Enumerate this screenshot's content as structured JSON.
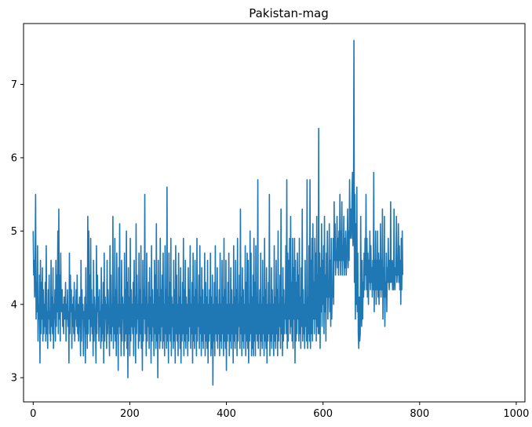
{
  "chart_data": {
    "type": "line",
    "title": "Pakistan-mag",
    "xlabel": "",
    "ylabel": "",
    "xlim": [
      -20,
      1018
    ],
    "ylim": [
      2.67,
      7.83
    ],
    "xticks": [
      0,
      200,
      400,
      600,
      800,
      1000
    ],
    "yticks": [
      3,
      4,
      5,
      6,
      7
    ],
    "xtick_labels": [
      "0",
      "200",
      "400",
      "600",
      "800",
      "1000"
    ],
    "ytick_labels": [
      "3",
      "4",
      "5",
      "6",
      "7"
    ],
    "grid": false,
    "legend": "none",
    "series": [
      {
        "color": "#1f77b4",
        "n_points": 1000,
        "x_start": 0,
        "x_step": 1,
        "values": [
          5.0,
          4.4,
          4.6,
          4.1,
          4.6,
          5.5,
          3.8,
          4.3,
          3.9,
          4.8,
          3.5,
          4.0,
          3.8,
          4.4,
          3.2,
          4.6,
          3.6,
          4.3,
          3.8,
          4.5,
          3.5,
          4.2,
          3.6,
          4.0,
          3.7,
          4.3,
          3.5,
          4.8,
          3.6,
          3.9,
          3.4,
          4.2,
          3.8,
          4.4,
          3.6,
          3.9,
          3.5,
          4.6,
          3.7,
          4.1,
          3.6,
          4.5,
          3.4,
          4.0,
          3.8,
          4.2,
          3.5,
          4.6,
          3.7,
          4.4,
          3.9,
          5.0,
          3.6,
          5.3,
          3.8,
          4.4,
          3.5,
          4.7,
          4.0,
          3.9,
          4.2,
          3.7,
          4.0,
          3.6,
          4.1,
          3.8,
          3.9,
          4.3,
          3.5,
          4.0,
          3.8,
          4.2,
          3.7,
          3.9,
          3.2,
          4.7,
          3.6,
          4.4,
          3.9,
          4.2,
          3.4,
          4.0,
          3.7,
          4.1,
          3.6,
          4.3,
          3.5,
          3.9,
          3.8,
          4.2,
          3.7,
          4.4,
          3.6,
          4.0,
          3.5,
          3.8,
          4.1,
          3.9,
          3.3,
          4.6,
          3.5,
          4.2,
          3.8,
          4.0,
          3.3,
          3.9,
          3.7,
          4.1,
          3.2,
          4.5,
          3.6,
          4.0,
          3.4,
          5.2,
          3.6,
          5.0,
          3.8,
          4.4,
          3.5,
          4.9,
          3.7,
          4.2,
          3.6,
          4.0,
          3.3,
          4.6,
          3.5,
          4.1,
          3.9,
          3.7,
          3.2,
          4.8,
          3.6,
          4.4,
          3.9,
          4.1,
          3.5,
          4.2,
          3.7,
          3.9,
          3.4,
          4.5,
          3.5,
          4.0,
          3.6,
          4.3,
          3.2,
          4.7,
          3.5,
          4.1,
          3.8,
          4.0,
          3.4,
          4.6,
          3.6,
          4.2,
          3.9,
          3.7,
          3.3,
          4.8,
          3.6,
          4.4,
          3.5,
          4.0,
          3.7,
          5.2,
          3.4,
          4.1,
          3.6,
          4.9,
          3.5,
          4.2,
          3.3,
          4.7,
          3.6,
          4.0,
          3.1,
          4.5,
          3.7,
          5.1,
          3.6,
          4.0,
          3.3,
          4.6,
          3.5,
          4.1,
          3.8,
          4.0,
          3.3,
          4.7,
          3.5,
          4.2,
          3.6,
          5.0,
          3.4,
          4.3,
          3.0,
          4.5,
          3.6,
          4.1,
          3.3,
          4.9,
          3.5,
          4.2,
          3.7,
          4.0,
          3.6,
          4.3,
          3.3,
          4.6,
          3.7,
          4.1,
          3.2,
          5.1,
          3.6,
          4.4,
          3.8,
          4.0,
          3.4,
          4.7,
          3.5,
          4.2,
          3.6,
          4.8,
          3.4,
          4.0,
          3.1,
          4.6,
          3.5,
          4.2,
          3.8,
          5.5,
          3.6,
          4.1,
          3.3,
          4.7,
          3.5,
          4.0,
          3.7,
          4.3,
          3.4,
          4.5,
          3.6,
          4.1,
          3.2,
          4.8,
          3.5,
          4.2,
          3.7,
          4.0,
          3.3,
          4.6,
          3.6,
          4.4,
          3.4,
          5.1,
          3.5,
          4.2,
          3.0,
          4.6,
          3.6,
          4.1,
          3.4,
          4.9,
          3.5,
          4.2,
          3.7,
          4.4,
          3.4,
          4.7,
          3.5,
          4.0,
          3.3,
          4.8,
          3.6,
          4.2,
          3.4,
          5.6,
          3.5,
          4.1,
          3.2,
          4.7,
          3.6,
          4.3,
          3.5,
          4.9,
          3.3,
          4.1,
          3.7,
          4.0,
          3.4,
          4.6,
          3.5,
          4.2,
          3.2,
          4.8,
          3.6,
          4.4,
          3.5,
          4.0,
          3.3,
          4.7,
          3.6,
          4.1,
          3.4,
          4.5,
          3.2,
          4.0,
          3.5,
          4.3,
          3.6,
          4.9,
          3.3,
          4.2,
          3.5,
          4.6,
          3.4,
          4.1,
          3.6,
          4.0,
          3.3,
          4.5,
          3.5,
          4.2,
          3.7,
          4.8,
          3.4,
          4.0,
          3.6,
          4.3,
          3.2,
          4.7,
          3.5,
          4.1,
          3.4,
          4.6,
          3.6,
          4.2,
          3.3,
          4.9,
          3.5,
          4.0,
          3.7,
          4.4,
          3.4,
          4.8,
          3.6,
          4.1,
          3.3,
          4.5,
          3.5,
          4.2,
          3.4,
          4.0,
          3.6,
          4.7,
          3.3,
          4.3,
          3.5,
          4.1,
          3.4,
          4.6,
          3.2,
          4.0,
          3.5,
          4.2,
          3.6,
          4.7,
          3.3,
          4.1,
          3.4,
          4.4,
          2.9,
          4.0,
          3.5,
          4.3,
          3.3,
          4.8,
          3.6,
          4.1,
          3.5,
          4.5,
          3.4,
          4.0,
          3.6,
          4.2,
          3.3,
          4.7,
          3.5,
          4.0,
          3.4,
          4.6,
          3.6,
          4.1,
          3.3,
          4.9,
          3.5,
          4.2,
          3.4,
          4.6,
          3.1,
          4.0,
          3.5,
          4.3,
          3.6,
          4.7,
          3.3,
          4.0,
          3.5,
          4.5,
          3.4,
          4.2,
          3.6,
          4.0,
          3.2,
          4.8,
          3.5,
          4.1,
          3.4,
          4.6,
          3.6,
          4.2,
          3.3,
          4.9,
          3.5,
          4.0,
          3.7,
          4.4,
          3.4,
          5.3,
          3.6,
          4.1,
          3.3,
          4.5,
          3.5,
          4.2,
          3.4,
          4.0,
          3.6,
          4.8,
          3.3,
          4.3,
          3.5,
          4.7,
          3.4,
          4.6,
          3.2,
          4.0,
          3.5,
          5.0,
          3.6,
          4.7,
          3.3,
          4.1,
          3.4,
          4.4,
          3.3,
          4.9,
          3.5,
          4.3,
          3.3,
          4.8,
          3.6,
          4.1,
          3.5,
          5.7,
          3.4,
          4.0,
          3.6,
          4.2,
          3.3,
          4.7,
          3.5,
          4.0,
          3.4,
          4.6,
          3.6,
          4.1,
          3.3,
          4.9,
          3.5,
          4.2,
          3.4,
          4.5,
          3.2,
          4.0,
          3.5,
          4.3,
          3.6,
          5.5,
          3.3,
          4.0,
          3.5,
          4.5,
          3.4,
          4.2,
          3.6,
          4.0,
          3.3,
          4.8,
          3.5,
          4.1,
          3.4,
          4.6,
          3.6,
          4.2,
          3.3,
          5.0,
          3.5,
          4.0,
          3.7,
          4.4,
          3.4,
          5.3,
          3.6,
          4.1,
          3.3,
          4.5,
          3.5,
          4.2,
          3.6,
          4.0,
          3.8,
          4.8,
          3.6,
          5.7,
          3.4,
          4.7,
          3.5,
          4.6,
          3.8,
          4.9,
          3.6,
          5.2,
          3.7,
          4.3,
          3.5,
          4.9,
          3.4,
          4.5,
          3.8,
          4.9,
          3.2,
          4.6,
          3.5,
          4.3,
          3.6,
          4.7,
          3.8,
          4.4,
          3.5,
          4.9,
          3.6,
          4.1,
          3.4,
          4.5,
          3.7,
          5.3,
          3.5,
          4.2,
          3.6,
          4.0,
          3.4,
          4.6,
          3.7,
          4.0,
          3.5,
          5.7,
          3.4,
          4.1,
          3.6,
          4.8,
          3.5,
          5.7,
          3.4,
          4.6,
          3.6,
          4.9,
          3.5,
          5.1,
          3.8,
          4.3,
          3.6,
          4.9,
          3.8,
          4.7,
          3.5,
          5.2,
          3.7,
          4.4,
          3.6,
          6.4,
          3.6,
          4.7,
          3.4,
          4.5,
          3.9,
          5.1,
          3.7,
          4.6,
          4.0,
          4.8,
          3.6,
          5.2,
          3.9,
          4.4,
          3.5,
          4.7,
          4.1,
          5.0,
          3.8,
          4.3,
          4.1,
          5.1,
          3.9,
          4.6,
          3.7,
          4.9,
          3.8,
          4.2,
          4.1,
          4.9,
          4.0,
          5.4,
          4.6,
          5.1,
          4.4,
          4.7,
          4.6,
          5.2,
          4.5,
          4.9,
          4.4,
          5.0,
          4.6,
          5.5,
          4.4,
          5.0,
          4.6,
          5.4,
          4.4,
          4.8,
          4.6,
          5.2,
          4.4,
          4.9,
          4.5,
          5.0,
          4.4,
          4.6,
          4.8,
          5.3,
          4.5,
          5.0,
          4.6,
          5.7,
          4.9,
          5.0,
          5.3,
          4.9,
          5.5,
          5.8,
          4.8,
          5.1,
          7.6,
          4.3,
          5.5,
          3.8,
          5.1,
          4.0,
          5.6,
          3.9,
          4.7,
          3.6,
          3.4,
          4.1,
          3.5,
          3.6,
          5.2,
          4.0,
          3.7,
          4.6,
          3.8,
          4.3,
          4.1,
          4.7,
          4.2,
          4.9,
          4.4,
          5.5,
          4.2,
          4.9,
          4.1,
          4.7,
          4.0,
          4.6,
          4.3,
          5.0,
          4.2,
          4.8,
          4.3,
          4.5,
          4.1,
          4.6,
          4.2,
          5.8,
          3.9,
          4.6,
          4.2,
          5.0,
          4.0,
          4.6,
          4.2,
          5.0,
          4.1,
          4.7,
          4.0,
          4.6,
          4.2,
          5.1,
          4.1,
          4.6,
          4.2,
          5.3,
          3.8,
          4.5,
          4.1,
          5.2,
          3.7,
          4.3,
          4.1,
          4.7,
          3.9,
          4.5,
          4.3,
          4.9,
          4.4,
          4.2,
          4.6,
          4.3,
          5.4,
          4.3,
          4.6,
          4.5,
          4.2,
          4.6,
          4.2,
          5.3,
          4.4,
          4.2,
          4.5,
          4.4,
          5.2,
          4.3,
          4.5,
          4.4,
          5.1,
          4.3,
          4.8,
          4.2,
          4.6,
          4.0,
          4.9,
          4.2,
          5.0,
          4.4
        ]
      }
    ]
  }
}
